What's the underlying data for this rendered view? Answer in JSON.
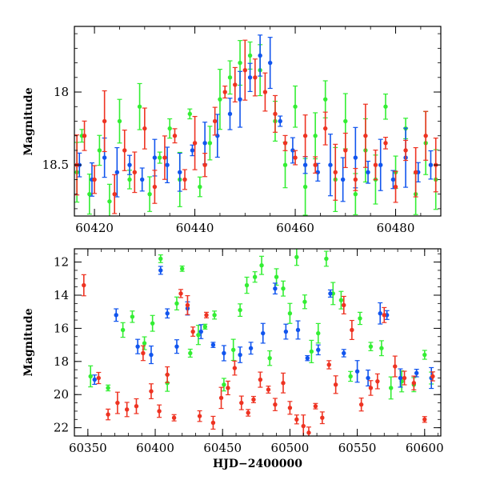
{
  "chart_data": [
    {
      "type": "scatter",
      "panel": "top",
      "title": "",
      "xlabel": "",
      "ylabel": "Magnitude",
      "xlim": [
        60416,
        60489
      ],
      "ylim": [
        18.85,
        17.55
      ],
      "y_inverted": true,
      "x_ticks": [
        60420,
        60440,
        60460,
        60480
      ],
      "x_minor_step": 5,
      "y_ticks": [
        18,
        18.5
      ],
      "y_minor_step": 0.1,
      "error_bars": true,
      "series": [
        {
          "color": "#33ee33",
          "points": [
            [
              60416.5,
              18.55
            ],
            [
              60417.5,
              18.3
            ],
            [
              60419,
              18.7
            ],
            [
              60421,
              18.4
            ],
            [
              60423,
              18.75
            ],
            [
              60425,
              18.2
            ],
            [
              60427,
              18.6
            ],
            [
              60429,
              18.1
            ],
            [
              60431,
              18.7
            ],
            [
              60433,
              18.45
            ],
            [
              60435,
              18.25
            ],
            [
              60437,
              18.6
            ],
            [
              60439,
              18.15
            ],
            [
              60441,
              18.65
            ],
            [
              60443,
              18.35
            ],
            [
              60445,
              18.05
            ],
            [
              60447,
              17.9
            ],
            [
              60449,
              17.8
            ],
            [
              60451,
              17.75
            ],
            [
              60453,
              17.85
            ],
            [
              60456,
              18.2
            ],
            [
              60458,
              18.5
            ],
            [
              60460,
              18.1
            ],
            [
              60462,
              18.65
            ],
            [
              60464,
              18.3
            ],
            [
              60466,
              18.05
            ],
            [
              60468,
              18.6
            ],
            [
              60470,
              18.2
            ],
            [
              60472,
              18.7
            ],
            [
              60474,
              18.4
            ],
            [
              60476,
              18.6
            ],
            [
              60478,
              18.1
            ],
            [
              60480,
              18.55
            ],
            [
              60482,
              18.25
            ],
            [
              60484,
              18.7
            ],
            [
              60486,
              18.35
            ],
            [
              60488,
              18.6
            ]
          ]
        },
        {
          "color": "#1155ee",
          "points": [
            [
              60417,
              18.5
            ],
            [
              60419.5,
              18.6
            ],
            [
              60422,
              18.45
            ],
            [
              60424.5,
              18.55
            ],
            [
              60427,
              18.5
            ],
            [
              60429.5,
              18.6
            ],
            [
              60432,
              18.45
            ],
            [
              60434.5,
              18.5
            ],
            [
              60437,
              18.55
            ],
            [
              60439.5,
              18.4
            ],
            [
              60442,
              18.35
            ],
            [
              60444.5,
              18.3
            ],
            [
              60447,
              18.15
            ],
            [
              60449,
              18.05
            ],
            [
              60451,
              17.9
            ],
            [
              60453,
              17.75
            ],
            [
              60455,
              17.8
            ],
            [
              60457,
              18.2
            ],
            [
              60459.5,
              18.4
            ],
            [
              60462,
              18.5
            ],
            [
              60464.5,
              18.55
            ],
            [
              60467,
              18.5
            ],
            [
              60469.5,
              18.6
            ],
            [
              60472,
              18.45
            ],
            [
              60474.5,
              18.55
            ],
            [
              60477,
              18.5
            ],
            [
              60479.5,
              18.6
            ],
            [
              60482,
              18.45
            ],
            [
              60484.5,
              18.55
            ],
            [
              60487,
              18.5
            ]
          ]
        },
        {
          "color": "#ee3322",
          "points": [
            [
              60416.5,
              18.5
            ],
            [
              60418,
              18.3
            ],
            [
              60420,
              18.6
            ],
            [
              60422,
              18.2
            ],
            [
              60424,
              18.7
            ],
            [
              60426,
              18.4
            ],
            [
              60428,
              18.55
            ],
            [
              60430,
              18.25
            ],
            [
              60432,
              18.65
            ],
            [
              60434,
              18.45
            ],
            [
              60436,
              18.3
            ],
            [
              60438,
              18.6
            ],
            [
              60440,
              18.35
            ],
            [
              60442,
              18.5
            ],
            [
              60444,
              18.2
            ],
            [
              60446,
              18.0
            ],
            [
              60448,
              17.95
            ],
            [
              60450,
              17.85
            ],
            [
              60452,
              17.9
            ],
            [
              60454,
              18.0
            ],
            [
              60456,
              18.15
            ],
            [
              60458,
              18.35
            ],
            [
              60460,
              18.45
            ],
            [
              60462,
              18.3
            ],
            [
              60464,
              18.5
            ],
            [
              60466,
              18.25
            ],
            [
              60468,
              18.55
            ],
            [
              60470,
              18.4
            ],
            [
              60472,
              18.6
            ],
            [
              60474,
              18.3
            ],
            [
              60476,
              18.5
            ],
            [
              60478,
              18.35
            ],
            [
              60480,
              18.65
            ],
            [
              60482,
              18.4
            ],
            [
              60484,
              18.55
            ],
            [
              60486,
              18.3
            ],
            [
              60488,
              18.5
            ]
          ]
        }
      ]
    },
    {
      "type": "scatter",
      "panel": "bottom",
      "title": "",
      "xlabel": "HJD−2400000",
      "ylabel": "Magnitude",
      "xlim": [
        60340,
        60612
      ],
      "ylim": [
        22.5,
        11.2
      ],
      "y_inverted": true,
      "x_ticks": [
        60350,
        60400,
        60450,
        60500,
        60550,
        60600
      ],
      "x_minor_step": 10,
      "y_ticks": [
        12,
        14,
        16,
        18,
        20,
        22
      ],
      "y_minor_step": 0.5,
      "error_bars": true,
      "series": [
        {
          "color": "#33ee33",
          "points": [
            [
              60352,
              18.9
            ],
            [
              60365,
              19.6
            ],
            [
              60376,
              16.1
            ],
            [
              60383,
              15.3
            ],
            [
              60392,
              16.9
            ],
            [
              60398,
              15.7
            ],
            [
              60404,
              11.8
            ],
            [
              60409,
              19.3
            ],
            [
              60416,
              14.5
            ],
            [
              60420,
              12.4
            ],
            [
              60426,
              17.5
            ],
            [
              60432,
              16.4
            ],
            [
              60437,
              15.9
            ],
            [
              60444,
              15.2
            ],
            [
              60451,
              19.4
            ],
            [
              60458,
              17.3
            ],
            [
              60463,
              14.9
            ],
            [
              60468,
              13.4
            ],
            [
              60474,
              12.9
            ],
            [
              60479,
              12.2
            ],
            [
              60485,
              17.8
            ],
            [
              60490,
              12.9
            ],
            [
              60495,
              13.6
            ],
            [
              60500,
              15.1
            ],
            [
              60505,
              11.7
            ],
            [
              60511,
              14.4
            ],
            [
              60516,
              17.4
            ],
            [
              60521,
              16.3
            ],
            [
              60527,
              11.8
            ],
            [
              60532,
              13.9
            ],
            [
              60538,
              14.3
            ],
            [
              60545,
              18.9
            ],
            [
              60552,
              15.4
            ],
            [
              60560,
              17.1
            ],
            [
              60568,
              17.2
            ],
            [
              60575,
              19.6
            ],
            [
              60583,
              19.2
            ],
            [
              60592,
              19.4
            ],
            [
              60600,
              17.6
            ],
            [
              60605,
              19.0
            ]
          ]
        },
        {
          "color": "#1155ee",
          "points": [
            [
              60355,
              19.1
            ],
            [
              60371,
              15.2
            ],
            [
              60387,
              17.1
            ],
            [
              60397,
              17.6
            ],
            [
              60404,
              12.5
            ],
            [
              60409,
              15.1
            ],
            [
              60416,
              17.1
            ],
            [
              60424,
              14.8
            ],
            [
              60434,
              16.2
            ],
            [
              60443,
              17.0
            ],
            [
              60451,
              17.5
            ],
            [
              60463,
              17.6
            ],
            [
              60471,
              17.2
            ],
            [
              60480,
              16.3
            ],
            [
              60489,
              13.6
            ],
            [
              60497,
              16.2
            ],
            [
              60506,
              16.1
            ],
            [
              60513,
              17.8
            ],
            [
              60521,
              17.3
            ],
            [
              60530,
              13.9
            ],
            [
              60540,
              17.5
            ],
            [
              60550,
              18.6
            ],
            [
              60558,
              19.0
            ],
            [
              60567,
              15.1
            ],
            [
              60572,
              15.2
            ],
            [
              60582,
              19.0
            ],
            [
              60594,
              18.7
            ],
            [
              60605,
              19.0
            ]
          ]
        },
        {
          "color": "#ee3322",
          "points": [
            [
              60347,
              13.4
            ],
            [
              60358,
              19.0
            ],
            [
              60365,
              21.2
            ],
            [
              60372,
              20.5
            ],
            [
              60379,
              20.9
            ],
            [
              60386,
              20.7
            ],
            [
              60391,
              17.5
            ],
            [
              60397,
              19.8
            ],
            [
              60403,
              21.0
            ],
            [
              60409,
              18.8
            ],
            [
              60414,
              21.4
            ],
            [
              60419,
              13.9
            ],
            [
              60424,
              14.6
            ],
            [
              60428,
              16.2
            ],
            [
              60433,
              21.3
            ],
            [
              60438,
              15.2
            ],
            [
              60443,
              21.7
            ],
            [
              60449,
              20.2
            ],
            [
              60454,
              19.6
            ],
            [
              60459,
              18.4
            ],
            [
              60464,
              20.5
            ],
            [
              60469,
              21.1
            ],
            [
              60473,
              20.3
            ],
            [
              60478,
              19.1
            ],
            [
              60484,
              19.7
            ],
            [
              60489,
              20.6
            ],
            [
              60495,
              19.3
            ],
            [
              60500,
              20.8
            ],
            [
              60505,
              21.5
            ],
            [
              60510,
              21.9
            ],
            [
              60514,
              22.3
            ],
            [
              60519,
              20.7
            ],
            [
              60524,
              21.4
            ],
            [
              60529,
              18.2
            ],
            [
              60534,
              19.4
            ],
            [
              60540,
              14.6
            ],
            [
              60546,
              16.1
            ],
            [
              60553,
              20.6
            ],
            [
              60560,
              19.6
            ],
            [
              60565,
              19.2
            ],
            [
              60570,
              15.2
            ],
            [
              60578,
              18.3
            ],
            [
              60585,
              19.0
            ],
            [
              60592,
              19.3
            ],
            [
              60600,
              21.5
            ],
            [
              60606,
              18.9
            ]
          ]
        }
      ]
    }
  ]
}
